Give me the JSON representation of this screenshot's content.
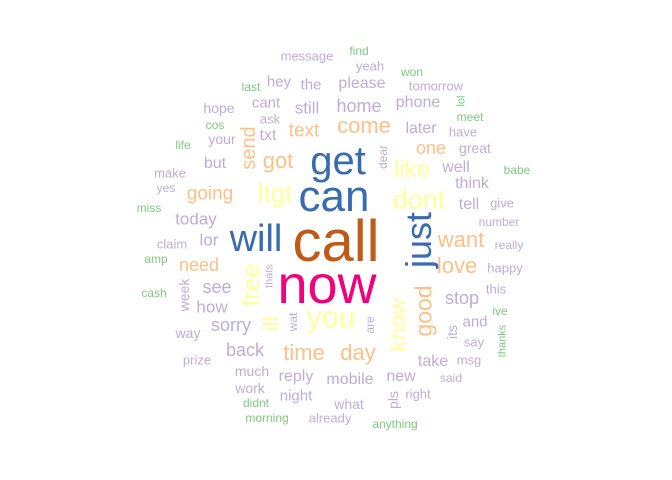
{
  "title": "",
  "colors": {
    "green": "#7fc97f",
    "purple": "#beaed4",
    "orange": "#fdc086",
    "yellow": "#ffff99",
    "blue": "#386cb0",
    "magenta": "#f0027f",
    "brown": "#bf5b17"
  },
  "words": [
    {
      "text": "call",
      "color": "brown",
      "rot": false
    },
    {
      "text": "now",
      "color": "magenta",
      "rot": false
    },
    {
      "text": "can",
      "color": "blue",
      "rot": false
    },
    {
      "text": "get",
      "color": "blue",
      "rot": false
    },
    {
      "text": "will",
      "color": "blue",
      "rot": false
    },
    {
      "text": "just",
      "color": "blue",
      "rot": true
    },
    {
      "text": "you",
      "color": "yellow",
      "rot": false
    },
    {
      "text": "dont",
      "color": "yellow",
      "rot": false
    },
    {
      "text": "ltgt",
      "color": "yellow",
      "rot": false
    },
    {
      "text": "free",
      "color": "yellow",
      "rot": true
    },
    {
      "text": "like",
      "color": "yellow",
      "rot": false
    },
    {
      "text": "know",
      "color": "yellow",
      "rot": true
    },
    {
      "text": "ill",
      "color": "yellow",
      "rot": true
    },
    {
      "text": "good",
      "color": "orange",
      "rot": true
    },
    {
      "text": "come",
      "color": "orange",
      "rot": false
    },
    {
      "text": "love",
      "color": "orange",
      "rot": false
    },
    {
      "text": "want",
      "color": "orange",
      "rot": false
    },
    {
      "text": "time",
      "color": "orange",
      "rot": false
    },
    {
      "text": "day",
      "color": "orange",
      "rot": false
    },
    {
      "text": "got",
      "color": "orange",
      "rot": false
    },
    {
      "text": "send",
      "color": "orange",
      "rot": true
    },
    {
      "text": "text",
      "color": "orange",
      "rot": false
    },
    {
      "text": "going",
      "color": "orange",
      "rot": false
    },
    {
      "text": "need",
      "color": "orange",
      "rot": false
    },
    {
      "text": "one",
      "color": "orange",
      "rot": false
    },
    {
      "text": "home",
      "color": "purple",
      "rot": false
    },
    {
      "text": "stop",
      "color": "purple",
      "rot": false
    },
    {
      "text": "see",
      "color": "purple",
      "rot": false
    },
    {
      "text": "sorry",
      "color": "purple",
      "rot": false
    },
    {
      "text": "back",
      "color": "purple",
      "rot": false
    },
    {
      "text": "today",
      "color": "purple",
      "rot": false
    },
    {
      "text": "how",
      "color": "purple",
      "rot": false
    },
    {
      "text": "lor",
      "color": "purple",
      "rot": false
    },
    {
      "text": "still",
      "color": "purple",
      "rot": false
    },
    {
      "text": "please",
      "color": "purple",
      "rot": false
    },
    {
      "text": "phone",
      "color": "purple",
      "rot": false
    },
    {
      "text": "later",
      "color": "purple",
      "rot": false
    },
    {
      "text": "reply",
      "color": "purple",
      "rot": false
    },
    {
      "text": "mobile",
      "color": "purple",
      "rot": false
    },
    {
      "text": "new",
      "color": "purple",
      "rot": false
    },
    {
      "text": "think",
      "color": "purple",
      "rot": false
    },
    {
      "text": "well",
      "color": "purple",
      "rot": false
    },
    {
      "text": "tell",
      "color": "purple",
      "rot": false
    },
    {
      "text": "take",
      "color": "purple",
      "rot": false
    },
    {
      "text": "but",
      "color": "purple",
      "rot": false
    },
    {
      "text": "txt",
      "color": "purple",
      "rot": false
    },
    {
      "text": "cant",
      "color": "purple",
      "rot": false
    },
    {
      "text": "the",
      "color": "purple",
      "rot": false
    },
    {
      "text": "hey",
      "color": "purple",
      "rot": false
    },
    {
      "text": "its",
      "color": "purple",
      "rot": true
    },
    {
      "text": "and",
      "color": "purple",
      "rot": false
    },
    {
      "text": "great",
      "color": "purple",
      "rot": false
    },
    {
      "text": "night",
      "color": "purple",
      "rot": false
    },
    {
      "text": "what",
      "color": "purple",
      "rot": false
    },
    {
      "text": "much",
      "color": "purple",
      "rot": false
    },
    {
      "text": "work",
      "color": "purple",
      "rot": false
    },
    {
      "text": "way",
      "color": "purple",
      "rot": false
    },
    {
      "text": "week",
      "color": "purple",
      "rot": true
    },
    {
      "text": "claim",
      "color": "purple",
      "rot": false
    },
    {
      "text": "make",
      "color": "purple",
      "rot": false
    },
    {
      "text": "hope",
      "color": "purple",
      "rot": false
    },
    {
      "text": "your",
      "color": "purple",
      "rot": false
    },
    {
      "text": "pls",
      "color": "purple",
      "rot": true
    },
    {
      "text": "msg",
      "color": "purple",
      "rot": false
    },
    {
      "text": "happy",
      "color": "purple",
      "rot": false
    },
    {
      "text": "give",
      "color": "purple",
      "rot": false
    },
    {
      "text": "message",
      "color": "purple",
      "rot": false
    },
    {
      "text": "tomorrow",
      "color": "purple",
      "rot": false
    },
    {
      "text": "yeah",
      "color": "purple",
      "rot": false
    },
    {
      "text": "ask",
      "color": "purple",
      "rot": false
    },
    {
      "text": "have",
      "color": "purple",
      "rot": false
    },
    {
      "text": "dear",
      "color": "purple",
      "rot": true
    },
    {
      "text": "yes",
      "color": "purple",
      "rot": false
    },
    {
      "text": "number",
      "color": "purple",
      "rot": false
    },
    {
      "text": "really",
      "color": "purple",
      "rot": false
    },
    {
      "text": "this",
      "color": "purple",
      "rot": false
    },
    {
      "text": "say",
      "color": "purple",
      "rot": false
    },
    {
      "text": "said",
      "color": "purple",
      "rot": false
    },
    {
      "text": "right",
      "color": "purple",
      "rot": false
    },
    {
      "text": "already",
      "color": "purple",
      "rot": false
    },
    {
      "text": "prize",
      "color": "purple",
      "rot": false
    },
    {
      "text": "thats",
      "color": "purple",
      "rot": true
    },
    {
      "text": "wat",
      "color": "purple",
      "rot": true
    },
    {
      "text": "are",
      "color": "purple",
      "rot": true
    },
    {
      "text": "find",
      "color": "green",
      "rot": false
    },
    {
      "text": "won",
      "color": "green",
      "rot": false
    },
    {
      "text": "last",
      "color": "green",
      "rot": false
    },
    {
      "text": "lol",
      "color": "green",
      "rot": true
    },
    {
      "text": "meet",
      "color": "green",
      "rot": false
    },
    {
      "text": "cos",
      "color": "green",
      "rot": false
    },
    {
      "text": "life",
      "color": "green",
      "rot": false
    },
    {
      "text": "babe",
      "color": "green",
      "rot": false
    },
    {
      "text": "miss",
      "color": "green",
      "rot": false
    },
    {
      "text": "amp",
      "color": "green",
      "rot": false
    },
    {
      "text": "cash",
      "color": "green",
      "rot": false
    },
    {
      "text": "ive",
      "color": "green",
      "rot": false
    },
    {
      "text": "thanks",
      "color": "green",
      "rot": true
    },
    {
      "text": "didnt",
      "color": "green",
      "rot": false
    },
    {
      "text": "morning",
      "color": "green",
      "rot": false
    },
    {
      "text": "anything",
      "color": "green",
      "rot": false
    }
  ]
}
